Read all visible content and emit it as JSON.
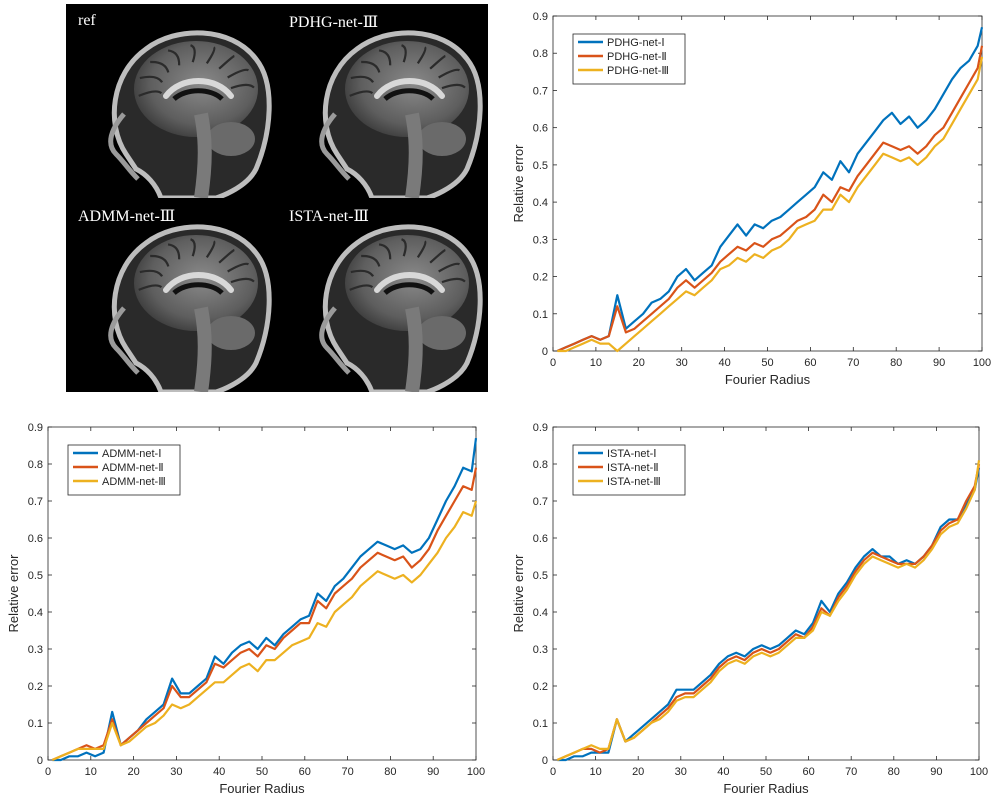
{
  "images": {
    "panels": [
      {
        "label": "ref"
      },
      {
        "label": "PDHG-net-Ⅲ"
      },
      {
        "label": "ADMM-net-Ⅲ"
      },
      {
        "label": "ISTA-net-Ⅲ"
      }
    ]
  },
  "colors": {
    "series1": "#0072bd",
    "series2": "#d95319",
    "series3": "#edb120"
  },
  "chart_data": [
    {
      "type": "line",
      "xlabel": "Fourier Radius",
      "ylabel": "Relative error",
      "xlim": [
        0,
        100
      ],
      "ylim": [
        0,
        0.9
      ],
      "xticks": [
        0,
        10,
        20,
        30,
        40,
        50,
        60,
        70,
        80,
        90,
        100
      ],
      "yticks": [
        0,
        0.1,
        0.2,
        0.3,
        0.4,
        0.5,
        0.6,
        0.7,
        0.8,
        0.9
      ],
      "legend": "top-left",
      "grid": false,
      "series": [
        {
          "name": "PDHG-net-Ⅰ",
          "color": "#0072bd",
          "x": [
            1,
            3,
            5,
            7,
            9,
            11,
            13,
            15,
            17,
            19,
            21,
            23,
            25,
            27,
            29,
            31,
            33,
            35,
            37,
            39,
            41,
            43,
            45,
            47,
            49,
            51,
            53,
            55,
            57,
            59,
            61,
            63,
            65,
            67,
            69,
            71,
            73,
            75,
            77,
            79,
            81,
            83,
            85,
            87,
            89,
            91,
            93,
            95,
            97,
            99,
            100
          ],
          "y": [
            0.0,
            0.01,
            0.02,
            0.03,
            0.04,
            0.03,
            0.04,
            0.15,
            0.06,
            0.08,
            0.1,
            0.13,
            0.14,
            0.16,
            0.2,
            0.22,
            0.19,
            0.21,
            0.23,
            0.28,
            0.31,
            0.34,
            0.31,
            0.34,
            0.33,
            0.35,
            0.36,
            0.38,
            0.4,
            0.42,
            0.44,
            0.48,
            0.46,
            0.51,
            0.48,
            0.53,
            0.56,
            0.59,
            0.62,
            0.64,
            0.61,
            0.63,
            0.6,
            0.62,
            0.65,
            0.69,
            0.73,
            0.76,
            0.78,
            0.82,
            0.87
          ]
        },
        {
          "name": "PDHG-net-Ⅱ",
          "color": "#d95319",
          "x": [
            1,
            3,
            5,
            7,
            9,
            11,
            13,
            15,
            17,
            19,
            21,
            23,
            25,
            27,
            29,
            31,
            33,
            35,
            37,
            39,
            41,
            43,
            45,
            47,
            49,
            51,
            53,
            55,
            57,
            59,
            61,
            63,
            65,
            67,
            69,
            71,
            73,
            75,
            77,
            79,
            81,
            83,
            85,
            87,
            89,
            91,
            93,
            95,
            97,
            99,
            100
          ],
          "y": [
            0.0,
            0.01,
            0.02,
            0.03,
            0.04,
            0.03,
            0.04,
            0.12,
            0.05,
            0.06,
            0.08,
            0.1,
            0.12,
            0.14,
            0.17,
            0.19,
            0.17,
            0.19,
            0.21,
            0.24,
            0.26,
            0.28,
            0.27,
            0.29,
            0.28,
            0.3,
            0.31,
            0.33,
            0.35,
            0.36,
            0.38,
            0.42,
            0.4,
            0.44,
            0.43,
            0.47,
            0.5,
            0.53,
            0.56,
            0.55,
            0.54,
            0.55,
            0.53,
            0.55,
            0.58,
            0.6,
            0.64,
            0.68,
            0.72,
            0.76,
            0.82
          ]
        },
        {
          "name": "PDHG-net-Ⅲ",
          "color": "#edb120",
          "x": [
            1,
            3,
            5,
            7,
            9,
            11,
            13,
            15,
            17,
            19,
            21,
            23,
            25,
            27,
            29,
            31,
            33,
            35,
            37,
            39,
            41,
            43,
            45,
            47,
            49,
            51,
            53,
            55,
            57,
            59,
            61,
            63,
            65,
            67,
            69,
            71,
            73,
            75,
            77,
            79,
            81,
            83,
            85,
            87,
            89,
            91,
            93,
            95,
            97,
            99,
            100
          ],
          "y": [
            0.0,
            0.0,
            0.01,
            0.02,
            0.03,
            0.02,
            0.02,
            0.0,
            0.02,
            0.04,
            0.06,
            0.08,
            0.1,
            0.12,
            0.14,
            0.16,
            0.15,
            0.17,
            0.19,
            0.22,
            0.23,
            0.25,
            0.24,
            0.26,
            0.25,
            0.27,
            0.28,
            0.3,
            0.33,
            0.34,
            0.35,
            0.38,
            0.38,
            0.42,
            0.4,
            0.44,
            0.47,
            0.5,
            0.53,
            0.52,
            0.51,
            0.52,
            0.5,
            0.52,
            0.55,
            0.57,
            0.61,
            0.65,
            0.69,
            0.73,
            0.79
          ]
        }
      ]
    },
    {
      "type": "line",
      "xlabel": "Fourier Radius",
      "ylabel": "Relative error",
      "xlim": [
        0,
        100
      ],
      "ylim": [
        0,
        0.9
      ],
      "xticks": [
        0,
        10,
        20,
        30,
        40,
        50,
        60,
        70,
        80,
        90,
        100
      ],
      "yticks": [
        0,
        0.1,
        0.2,
        0.3,
        0.4,
        0.5,
        0.6,
        0.7,
        0.8,
        0.9
      ],
      "legend": "top-left",
      "grid": false,
      "series": [
        {
          "name": "ADMM-net-Ⅰ",
          "color": "#0072bd",
          "x": [
            1,
            3,
            5,
            7,
            9,
            11,
            13,
            15,
            17,
            19,
            21,
            23,
            25,
            27,
            29,
            31,
            33,
            35,
            37,
            39,
            41,
            43,
            45,
            47,
            49,
            51,
            53,
            55,
            57,
            59,
            61,
            63,
            65,
            67,
            69,
            71,
            73,
            75,
            77,
            79,
            81,
            83,
            85,
            87,
            89,
            91,
            93,
            95,
            97,
            99,
            100
          ],
          "y": [
            0.0,
            0.0,
            0.01,
            0.01,
            0.02,
            0.01,
            0.02,
            0.13,
            0.04,
            0.06,
            0.08,
            0.11,
            0.13,
            0.15,
            0.22,
            0.18,
            0.18,
            0.2,
            0.22,
            0.28,
            0.26,
            0.29,
            0.31,
            0.32,
            0.3,
            0.33,
            0.31,
            0.34,
            0.36,
            0.38,
            0.39,
            0.45,
            0.43,
            0.47,
            0.49,
            0.52,
            0.55,
            0.57,
            0.59,
            0.58,
            0.57,
            0.58,
            0.56,
            0.57,
            0.6,
            0.65,
            0.7,
            0.74,
            0.79,
            0.78,
            0.87
          ]
        },
        {
          "name": "ADMM-net-Ⅱ",
          "color": "#d95319",
          "x": [
            1,
            3,
            5,
            7,
            9,
            11,
            13,
            15,
            17,
            19,
            21,
            23,
            25,
            27,
            29,
            31,
            33,
            35,
            37,
            39,
            41,
            43,
            45,
            47,
            49,
            51,
            53,
            55,
            57,
            59,
            61,
            63,
            65,
            67,
            69,
            71,
            73,
            75,
            77,
            79,
            81,
            83,
            85,
            87,
            89,
            91,
            93,
            95,
            97,
            99,
            100
          ],
          "y": [
            0.0,
            0.01,
            0.02,
            0.03,
            0.04,
            0.03,
            0.04,
            0.11,
            0.04,
            0.06,
            0.08,
            0.1,
            0.12,
            0.14,
            0.2,
            0.17,
            0.17,
            0.19,
            0.21,
            0.26,
            0.25,
            0.27,
            0.29,
            0.3,
            0.28,
            0.31,
            0.3,
            0.33,
            0.35,
            0.37,
            0.37,
            0.43,
            0.41,
            0.45,
            0.47,
            0.49,
            0.52,
            0.54,
            0.56,
            0.55,
            0.54,
            0.55,
            0.52,
            0.54,
            0.57,
            0.62,
            0.66,
            0.7,
            0.74,
            0.73,
            0.79
          ]
        },
        {
          "name": "ADMM-net-Ⅲ",
          "color": "#edb120",
          "x": [
            1,
            3,
            5,
            7,
            9,
            11,
            13,
            15,
            17,
            19,
            21,
            23,
            25,
            27,
            29,
            31,
            33,
            35,
            37,
            39,
            41,
            43,
            45,
            47,
            49,
            51,
            53,
            55,
            57,
            59,
            61,
            63,
            65,
            67,
            69,
            71,
            73,
            75,
            77,
            79,
            81,
            83,
            85,
            87,
            89,
            91,
            93,
            95,
            97,
            99,
            100
          ],
          "y": [
            0.0,
            0.01,
            0.02,
            0.03,
            0.03,
            0.03,
            0.03,
            0.1,
            0.04,
            0.05,
            0.07,
            0.09,
            0.1,
            0.12,
            0.15,
            0.14,
            0.15,
            0.17,
            0.19,
            0.21,
            0.21,
            0.23,
            0.25,
            0.26,
            0.24,
            0.27,
            0.27,
            0.29,
            0.31,
            0.32,
            0.33,
            0.37,
            0.36,
            0.4,
            0.42,
            0.44,
            0.47,
            0.49,
            0.51,
            0.5,
            0.49,
            0.5,
            0.48,
            0.5,
            0.53,
            0.56,
            0.6,
            0.63,
            0.67,
            0.66,
            0.7
          ]
        }
      ]
    },
    {
      "type": "line",
      "xlabel": "Fourier Radius",
      "ylabel": "Relative error",
      "xlim": [
        0,
        100
      ],
      "ylim": [
        0,
        0.9
      ],
      "xticks": [
        0,
        10,
        20,
        30,
        40,
        50,
        60,
        70,
        80,
        90,
        100
      ],
      "yticks": [
        0,
        0.1,
        0.2,
        0.3,
        0.4,
        0.5,
        0.6,
        0.7,
        0.8,
        0.9
      ],
      "legend": "top-left",
      "grid": false,
      "series": [
        {
          "name": "ISTA-net-Ⅰ",
          "color": "#0072bd",
          "x": [
            1,
            3,
            5,
            7,
            9,
            11,
            13,
            15,
            17,
            19,
            21,
            23,
            25,
            27,
            29,
            31,
            33,
            35,
            37,
            39,
            41,
            43,
            45,
            47,
            49,
            51,
            53,
            55,
            57,
            59,
            61,
            63,
            65,
            67,
            69,
            71,
            73,
            75,
            77,
            79,
            81,
            83,
            85,
            87,
            89,
            91,
            93,
            95,
            97,
            99,
            100
          ],
          "y": [
            0.0,
            0.0,
            0.01,
            0.01,
            0.02,
            0.02,
            0.02,
            0.11,
            0.05,
            0.07,
            0.09,
            0.11,
            0.13,
            0.15,
            0.19,
            0.19,
            0.19,
            0.21,
            0.23,
            0.26,
            0.28,
            0.29,
            0.28,
            0.3,
            0.31,
            0.3,
            0.31,
            0.33,
            0.35,
            0.34,
            0.37,
            0.43,
            0.4,
            0.45,
            0.48,
            0.52,
            0.55,
            0.57,
            0.55,
            0.55,
            0.53,
            0.54,
            0.53,
            0.55,
            0.58,
            0.63,
            0.65,
            0.65,
            0.69,
            0.73,
            0.79
          ]
        },
        {
          "name": "ISTA-net-Ⅱ",
          "color": "#d95319",
          "x": [
            1,
            3,
            5,
            7,
            9,
            11,
            13,
            15,
            17,
            19,
            21,
            23,
            25,
            27,
            29,
            31,
            33,
            35,
            37,
            39,
            41,
            43,
            45,
            47,
            49,
            51,
            53,
            55,
            57,
            59,
            61,
            63,
            65,
            67,
            69,
            71,
            73,
            75,
            77,
            79,
            81,
            83,
            85,
            87,
            89,
            91,
            93,
            95,
            97,
            99,
            100
          ],
          "y": [
            0.0,
            0.01,
            0.02,
            0.03,
            0.03,
            0.02,
            0.03,
            0.11,
            0.05,
            0.06,
            0.08,
            0.1,
            0.12,
            0.14,
            0.17,
            0.18,
            0.18,
            0.2,
            0.22,
            0.25,
            0.27,
            0.28,
            0.27,
            0.29,
            0.3,
            0.29,
            0.3,
            0.32,
            0.34,
            0.33,
            0.36,
            0.41,
            0.39,
            0.44,
            0.47,
            0.51,
            0.54,
            0.56,
            0.55,
            0.54,
            0.53,
            0.53,
            0.53,
            0.55,
            0.58,
            0.62,
            0.64,
            0.65,
            0.7,
            0.74,
            0.8
          ]
        },
        {
          "name": "ISTA-net-Ⅲ",
          "color": "#edb120",
          "x": [
            1,
            3,
            5,
            7,
            9,
            11,
            13,
            15,
            17,
            19,
            21,
            23,
            25,
            27,
            29,
            31,
            33,
            35,
            37,
            39,
            41,
            43,
            45,
            47,
            49,
            51,
            53,
            55,
            57,
            59,
            61,
            63,
            65,
            67,
            69,
            71,
            73,
            75,
            77,
            79,
            81,
            83,
            85,
            87,
            89,
            91,
            93,
            95,
            97,
            99,
            100
          ],
          "y": [
            0.0,
            0.01,
            0.02,
            0.03,
            0.04,
            0.03,
            0.03,
            0.11,
            0.05,
            0.06,
            0.08,
            0.1,
            0.11,
            0.13,
            0.16,
            0.17,
            0.17,
            0.19,
            0.21,
            0.24,
            0.26,
            0.27,
            0.26,
            0.28,
            0.29,
            0.28,
            0.29,
            0.31,
            0.33,
            0.33,
            0.35,
            0.4,
            0.39,
            0.43,
            0.46,
            0.5,
            0.53,
            0.55,
            0.54,
            0.53,
            0.52,
            0.53,
            0.52,
            0.54,
            0.57,
            0.61,
            0.63,
            0.64,
            0.68,
            0.73,
            0.81
          ]
        }
      ]
    }
  ]
}
